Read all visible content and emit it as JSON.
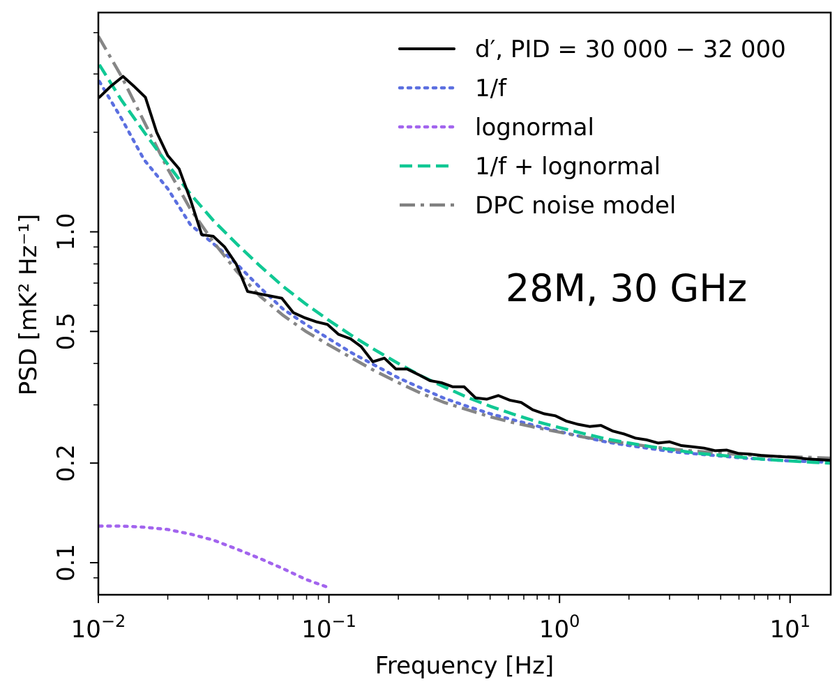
{
  "chart_data": {
    "type": "line",
    "title": "",
    "annotation": "28M, 30 GHz",
    "xlabel": "Frequency [Hz]",
    "ylabel": "PSD [mK² Hz⁻¹]",
    "xscale": "log",
    "yscale": "log",
    "xlim": [
      0.01,
      15
    ],
    "ylim": [
      0.08,
      4.6
    ],
    "x_ticks": [
      {
        "value": 0.01,
        "base": "10",
        "exp": "−2"
      },
      {
        "value": 0.1,
        "base": "10",
        "exp": "−1"
      },
      {
        "value": 1,
        "base": "10",
        "exp": "0"
      },
      {
        "value": 10,
        "base": "10",
        "exp": "1"
      }
    ],
    "y_ticks": [
      {
        "value": 0.1,
        "label": "0.1"
      },
      {
        "value": 0.2,
        "label": "0.2"
      },
      {
        "value": 0.5,
        "label": "0.5"
      },
      {
        "value": 1.0,
        "label": "1.0"
      }
    ],
    "grid": false,
    "legend_position": "top-right",
    "series": [
      {
        "name": "d′, PID = 30 000 − 32 000",
        "color": "#000000",
        "style": "solid",
        "x": [
          0.0101,
          0.0113,
          0.0128,
          0.0143,
          0.016,
          0.0179,
          0.02,
          0.0224,
          0.0251,
          0.0281,
          0.0315,
          0.0353,
          0.0396,
          0.0444,
          0.0497,
          0.0557,
          0.0625,
          0.07,
          0.0784,
          0.0879,
          0.0985,
          0.11,
          0.124,
          0.138,
          0.155,
          0.174,
          0.195,
          0.218,
          0.245,
          0.274,
          0.307,
          0.344,
          0.386,
          0.432,
          0.484,
          0.543,
          0.608,
          0.682,
          0.764,
          0.856,
          0.959,
          1.07,
          1.2,
          1.35,
          1.51,
          1.7,
          1.9,
          2.13,
          2.39,
          2.68,
          3.0,
          3.37,
          3.77,
          4.23,
          4.74,
          5.31,
          5.95,
          6.67,
          7.48,
          8.38,
          9.39,
          10.5,
          11.8,
          13.2,
          15.0
        ],
        "y": [
          2.55,
          2.75,
          2.95,
          2.75,
          2.55,
          2.0,
          1.7,
          1.55,
          1.25,
          0.98,
          0.97,
          0.9,
          0.8,
          0.66,
          0.65,
          0.64,
          0.63,
          0.57,
          0.55,
          0.535,
          0.525,
          0.49,
          0.475,
          0.45,
          0.405,
          0.415,
          0.385,
          0.385,
          0.37,
          0.355,
          0.35,
          0.34,
          0.34,
          0.315,
          0.312,
          0.32,
          0.31,
          0.305,
          0.29,
          0.282,
          0.278,
          0.268,
          0.262,
          0.258,
          0.26,
          0.25,
          0.245,
          0.238,
          0.235,
          0.23,
          0.232,
          0.226,
          0.224,
          0.222,
          0.218,
          0.219,
          0.214,
          0.213,
          0.211,
          0.21,
          0.209,
          0.208,
          0.206,
          0.205,
          0.204
        ]
      },
      {
        "name": "1/f",
        "color": "#5b6fe0",
        "style": "dotted",
        "x": [
          0.0101,
          0.0126,
          0.0158,
          0.02,
          0.0251,
          0.0316,
          0.0398,
          0.0501,
          0.0631,
          0.0794,
          0.1,
          0.126,
          0.158,
          0.2,
          0.251,
          0.316,
          0.398,
          0.501,
          0.631,
          0.794,
          1.0,
          1.26,
          1.58,
          2.0,
          2.51,
          3.16,
          3.98,
          5.01,
          6.31,
          7.94,
          10.0,
          12.6,
          15.0
        ],
        "y": [
          2.85,
          2.2,
          1.65,
          1.35,
          1.05,
          0.92,
          0.8,
          0.68,
          0.585,
          0.525,
          0.475,
          0.43,
          0.395,
          0.362,
          0.337,
          0.314,
          0.297,
          0.282,
          0.27,
          0.259,
          0.249,
          0.24,
          0.232,
          0.226,
          0.221,
          0.216,
          0.213,
          0.21,
          0.207,
          0.205,
          0.203,
          0.202,
          0.201
        ]
      },
      {
        "name": "lognormal",
        "color": "#a264ee",
        "style": "dotted",
        "x": [
          0.0101,
          0.0126,
          0.0158,
          0.02,
          0.0251,
          0.0316,
          0.0398,
          0.0501,
          0.0631,
          0.0794,
          0.1
        ],
        "y": [
          0.129,
          0.129,
          0.128,
          0.126,
          0.122,
          0.117,
          0.11,
          0.103,
          0.096,
          0.089,
          0.084
        ]
      },
      {
        "name": "1/f + lognormal",
        "color": "#10c894",
        "style": "dashed",
        "x": [
          0.0101,
          0.0126,
          0.0158,
          0.02,
          0.0251,
          0.0316,
          0.0398,
          0.0501,
          0.0631,
          0.0794,
          0.1,
          0.126,
          0.158,
          0.2,
          0.251,
          0.316,
          0.398,
          0.501,
          0.631,
          0.794,
          1.0,
          1.26,
          1.58,
          2.0,
          2.51,
          3.16,
          3.98,
          5.01,
          6.31,
          7.94,
          10.0,
          12.6,
          15.0
        ],
        "y": [
          3.2,
          2.5,
          2.0,
          1.6,
          1.3,
          1.08,
          0.92,
          0.79,
          0.685,
          0.605,
          0.54,
          0.485,
          0.44,
          0.4,
          0.367,
          0.34,
          0.316,
          0.297,
          0.281,
          0.267,
          0.256,
          0.246,
          0.237,
          0.23,
          0.224,
          0.219,
          0.214,
          0.211,
          0.208,
          0.205,
          0.203,
          0.201,
          0.2
        ]
      },
      {
        "name": "DPC noise model",
        "color": "#808080",
        "style": "dashdot",
        "x": [
          0.01,
          0.0126,
          0.0158,
          0.02,
          0.0251,
          0.0316,
          0.0398,
          0.0501,
          0.0631,
          0.0794,
          0.1,
          0.126,
          0.158,
          0.2,
          0.251,
          0.316,
          0.398,
          0.501,
          0.631,
          0.794,
          1.0,
          1.26,
          1.58,
          2.0,
          2.51,
          3.16,
          3.98,
          5.01,
          6.31,
          7.94,
          10.0,
          12.6,
          15.0
        ],
        "y": [
          3.9,
          2.95,
          2.15,
          1.55,
          1.17,
          0.93,
          0.76,
          0.64,
          0.56,
          0.5,
          0.455,
          0.415,
          0.38,
          0.35,
          0.325,
          0.305,
          0.29,
          0.276,
          0.265,
          0.256,
          0.248,
          0.24,
          0.234,
          0.229,
          0.224,
          0.22,
          0.217,
          0.214,
          0.212,
          0.21,
          0.209,
          0.208,
          0.207
        ]
      }
    ]
  }
}
